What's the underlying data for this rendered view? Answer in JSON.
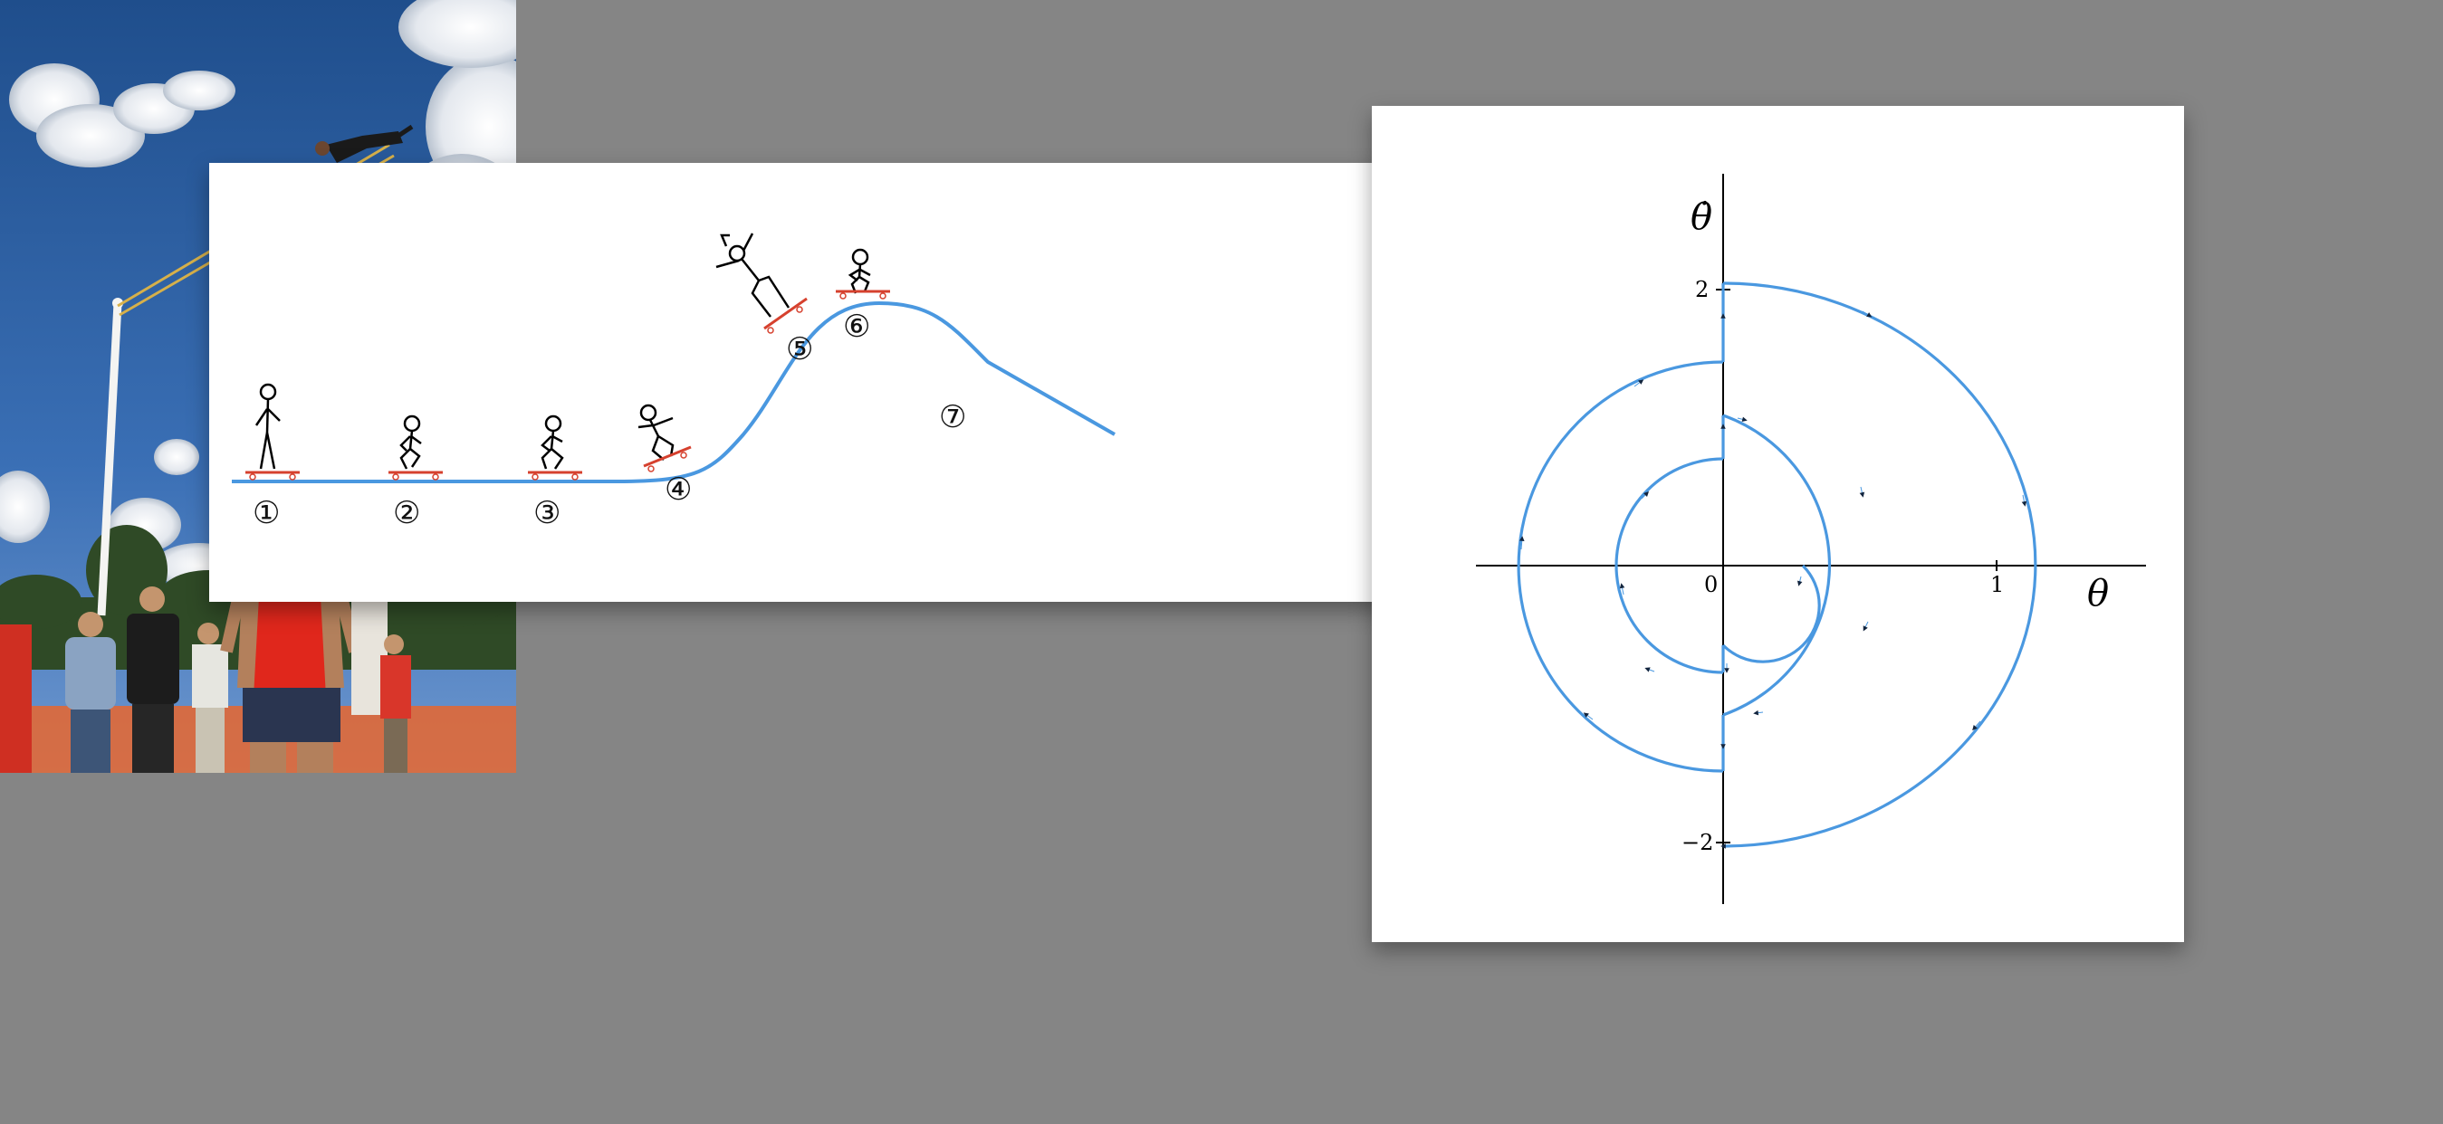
{
  "skateboard_figure": {
    "stage_markers": [
      "①",
      "②",
      "③",
      "④",
      "⑤",
      "⑥",
      "⑦"
    ]
  },
  "phase_portrait": {
    "x_axis_label": "θ",
    "y_axis_label": "θ̇",
    "x_ticks": [
      "0",
      "1"
    ],
    "y_ticks": [
      "2",
      "−2"
    ],
    "curve_color": "#4a98e0"
  },
  "photo": {
    "subject": "giant swing ride against blue sky with spectators"
  }
}
